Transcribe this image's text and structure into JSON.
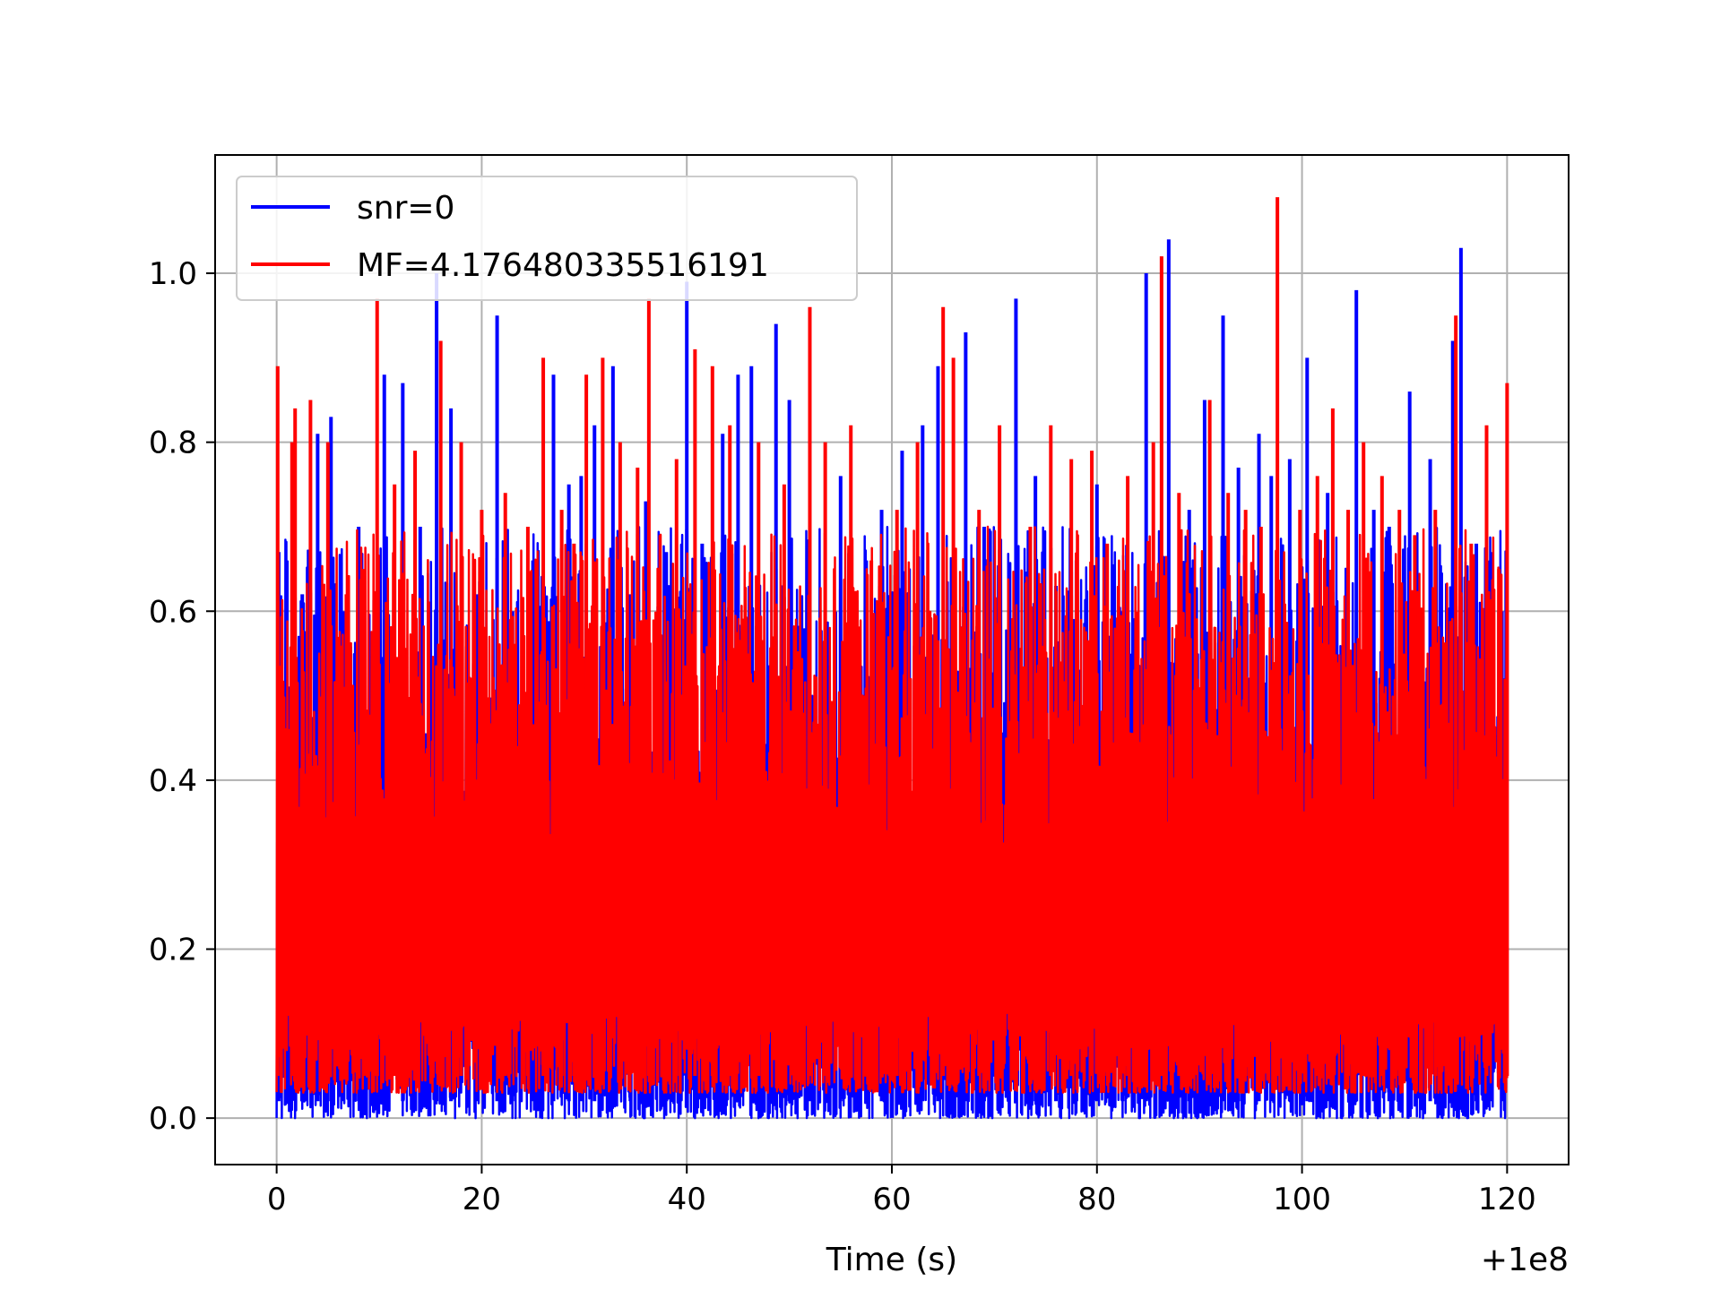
{
  "chart_data": {
    "type": "line",
    "title": "",
    "xlabel": "Time (s)",
    "ylabel": "",
    "x_offset_label": "+1e8",
    "x_offset": 100000000,
    "xlim": [
      -6,
      126
    ],
    "ylim": [
      -0.055,
      1.14
    ],
    "x_ticks": [
      {
        "value": 0,
        "label": "0"
      },
      {
        "value": 20,
        "label": "20"
      },
      {
        "value": 40,
        "label": "40"
      },
      {
        "value": 60,
        "label": "60"
      },
      {
        "value": 80,
        "label": "80"
      },
      {
        "value": 100,
        "label": "100"
      },
      {
        "value": 120,
        "label": "120"
      }
    ],
    "y_ticks": [
      {
        "value": 0.0,
        "label": "0.0"
      },
      {
        "value": 0.2,
        "label": "0.2"
      },
      {
        "value": 0.4,
        "label": "0.4"
      },
      {
        "value": 0.6,
        "label": "0.6"
      },
      {
        "value": 0.8,
        "label": "0.8"
      },
      {
        "value": 1.0,
        "label": "1.0"
      }
    ],
    "grid": true,
    "legend_position": "top-left",
    "x_range": [
      0,
      120
    ],
    "series": [
      {
        "name": "snr=0",
        "color": "#0000ff",
        "floor": 0.0,
        "peaks": [
          {
            "x": 0.2,
            "y": 0.67
          },
          {
            "x": 1.0,
            "y": 0.66
          },
          {
            "x": 2.5,
            "y": 0.62
          },
          {
            "x": 4.0,
            "y": 0.81
          },
          {
            "x": 5.3,
            "y": 0.83
          },
          {
            "x": 6.5,
            "y": 0.6
          },
          {
            "x": 8.0,
            "y": 0.7
          },
          {
            "x": 10.5,
            "y": 0.88
          },
          {
            "x": 12.3,
            "y": 0.87
          },
          {
            "x": 14.0,
            "y": 0.7
          },
          {
            "x": 15.6,
            "y": 1.0
          },
          {
            "x": 17.0,
            "y": 0.84
          },
          {
            "x": 19.5,
            "y": 0.62
          },
          {
            "x": 21.5,
            "y": 0.95
          },
          {
            "x": 23.0,
            "y": 0.6
          },
          {
            "x": 25.0,
            "y": 0.66
          },
          {
            "x": 27.0,
            "y": 0.88
          },
          {
            "x": 28.5,
            "y": 0.75
          },
          {
            "x": 29.7,
            "y": 0.76
          },
          {
            "x": 31.0,
            "y": 0.82
          },
          {
            "x": 32.8,
            "y": 0.89
          },
          {
            "x": 34.5,
            "y": 0.62
          },
          {
            "x": 36.0,
            "y": 0.73
          },
          {
            "x": 38.0,
            "y": 0.67
          },
          {
            "x": 40.0,
            "y": 0.99
          },
          {
            "x": 41.5,
            "y": 0.68
          },
          {
            "x": 43.5,
            "y": 0.81
          },
          {
            "x": 45.0,
            "y": 0.88
          },
          {
            "x": 46.3,
            "y": 0.89
          },
          {
            "x": 48.7,
            "y": 0.94
          },
          {
            "x": 50.0,
            "y": 0.85
          },
          {
            "x": 52.0,
            "y": 0.66
          },
          {
            "x": 55.0,
            "y": 0.76
          },
          {
            "x": 57.5,
            "y": 0.66
          },
          {
            "x": 59.0,
            "y": 0.72
          },
          {
            "x": 61.0,
            "y": 0.79
          },
          {
            "x": 63.0,
            "y": 0.82
          },
          {
            "x": 64.5,
            "y": 0.89
          },
          {
            "x": 67.2,
            "y": 0.93
          },
          {
            "x": 69.0,
            "y": 0.7
          },
          {
            "x": 72.1,
            "y": 0.97
          },
          {
            "x": 74.0,
            "y": 0.76
          },
          {
            "x": 76.0,
            "y": 0.63
          },
          {
            "x": 78.0,
            "y": 0.66
          },
          {
            "x": 80.0,
            "y": 0.75
          },
          {
            "x": 82.5,
            "y": 0.6
          },
          {
            "x": 84.8,
            "y": 1.0
          },
          {
            "x": 87.0,
            "y": 1.04
          },
          {
            "x": 89.0,
            "y": 0.72
          },
          {
            "x": 90.5,
            "y": 0.85
          },
          {
            "x": 92.3,
            "y": 0.95
          },
          {
            "x": 93.8,
            "y": 0.77
          },
          {
            "x": 95.8,
            "y": 0.81
          },
          {
            "x": 97.0,
            "y": 0.76
          },
          {
            "x": 98.8,
            "y": 0.78
          },
          {
            "x": 100.5,
            "y": 0.9
          },
          {
            "x": 102.5,
            "y": 0.74
          },
          {
            "x": 105.3,
            "y": 0.98
          },
          {
            "x": 107.0,
            "y": 0.72
          },
          {
            "x": 108.5,
            "y": 0.7
          },
          {
            "x": 110.5,
            "y": 0.86
          },
          {
            "x": 112.5,
            "y": 0.78
          },
          {
            "x": 114.7,
            "y": 0.92
          },
          {
            "x": 115.5,
            "y": 1.03
          },
          {
            "x": 117.0,
            "y": 0.68
          },
          {
            "x": 118.5,
            "y": 0.67
          },
          {
            "x": 119.5,
            "y": 0.6
          }
        ]
      },
      {
        "name": "MF=4.176480335516191",
        "color": "#ff0000",
        "floor": 0.03,
        "peaks": [
          {
            "x": 0.1,
            "y": 0.89
          },
          {
            "x": 1.5,
            "y": 0.8
          },
          {
            "x": 1.8,
            "y": 0.84
          },
          {
            "x": 3.3,
            "y": 0.85
          },
          {
            "x": 5.0,
            "y": 0.8
          },
          {
            "x": 6.8,
            "y": 0.62
          },
          {
            "x": 8.5,
            "y": 0.65
          },
          {
            "x": 9.8,
            "y": 0.97
          },
          {
            "x": 11.5,
            "y": 0.75
          },
          {
            "x": 13.5,
            "y": 0.79
          },
          {
            "x": 16.0,
            "y": 0.92
          },
          {
            "x": 18.0,
            "y": 0.8
          },
          {
            "x": 20.0,
            "y": 0.72
          },
          {
            "x": 22.3,
            "y": 0.74
          },
          {
            "x": 24.5,
            "y": 0.7
          },
          {
            "x": 26.0,
            "y": 0.9
          },
          {
            "x": 27.8,
            "y": 0.72
          },
          {
            "x": 29.0,
            "y": 0.68
          },
          {
            "x": 30.2,
            "y": 0.88
          },
          {
            "x": 31.8,
            "y": 0.9
          },
          {
            "x": 33.5,
            "y": 0.8
          },
          {
            "x": 35.2,
            "y": 0.77
          },
          {
            "x": 36.3,
            "y": 0.97
          },
          {
            "x": 39.0,
            "y": 0.78
          },
          {
            "x": 40.8,
            "y": 0.91
          },
          {
            "x": 42.5,
            "y": 0.89
          },
          {
            "x": 44.2,
            "y": 0.82
          },
          {
            "x": 47.0,
            "y": 0.8
          },
          {
            "x": 49.5,
            "y": 0.75
          },
          {
            "x": 52.0,
            "y": 0.96
          },
          {
            "x": 53.5,
            "y": 0.8
          },
          {
            "x": 56.0,
            "y": 0.82
          },
          {
            "x": 58.0,
            "y": 0.66
          },
          {
            "x": 60.5,
            "y": 0.72
          },
          {
            "x": 62.5,
            "y": 0.8
          },
          {
            "x": 65.0,
            "y": 0.96
          },
          {
            "x": 66.0,
            "y": 0.9
          },
          {
            "x": 68.5,
            "y": 0.72
          },
          {
            "x": 70.5,
            "y": 0.82
          },
          {
            "x": 73.5,
            "y": 0.7
          },
          {
            "x": 75.5,
            "y": 0.82
          },
          {
            "x": 77.5,
            "y": 0.78
          },
          {
            "x": 79.5,
            "y": 0.79
          },
          {
            "x": 81.0,
            "y": 0.68
          },
          {
            "x": 83.0,
            "y": 0.76
          },
          {
            "x": 85.5,
            "y": 0.8
          },
          {
            "x": 86.3,
            "y": 1.02
          },
          {
            "x": 88.0,
            "y": 0.74
          },
          {
            "x": 91.0,
            "y": 0.85
          },
          {
            "x": 92.8,
            "y": 0.74
          },
          {
            "x": 94.5,
            "y": 0.72
          },
          {
            "x": 96.0,
            "y": 0.7
          },
          {
            "x": 97.6,
            "y": 1.09
          },
          {
            "x": 99.8,
            "y": 0.72
          },
          {
            "x": 101.5,
            "y": 0.76
          },
          {
            "x": 103.0,
            "y": 0.84
          },
          {
            "x": 104.5,
            "y": 0.72
          },
          {
            "x": 106.0,
            "y": 0.8
          },
          {
            "x": 107.8,
            "y": 0.76
          },
          {
            "x": 109.5,
            "y": 0.72
          },
          {
            "x": 111.0,
            "y": 0.69
          },
          {
            "x": 113.0,
            "y": 0.72
          },
          {
            "x": 115.0,
            "y": 0.95
          },
          {
            "x": 116.5,
            "y": 0.68
          },
          {
            "x": 118.0,
            "y": 0.82
          },
          {
            "x": 119.2,
            "y": 0.65
          },
          {
            "x": 120.0,
            "y": 0.87
          }
        ]
      }
    ]
  }
}
